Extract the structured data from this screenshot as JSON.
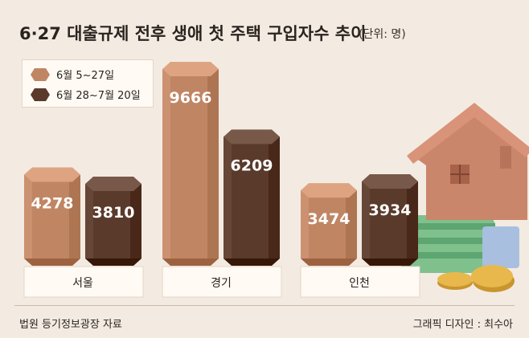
{
  "chart_data": {
    "type": "bar",
    "title": "6·27 대출규제 전후 생애 첫 주택 구입자수 추이",
    "unit": "(단위: 명)",
    "categories": [
      "서울",
      "경기",
      "인천"
    ],
    "series": [
      {
        "name": "6월 5~27일",
        "values": [
          4278,
          9666,
          3474
        ],
        "color": "#c08664"
      },
      {
        "name": "6월 28~7월 20일",
        "values": [
          3810,
          6209,
          3934
        ],
        "color": "#5a3a2b"
      }
    ],
    "legend_position": "top-left",
    "grid": false
  },
  "source": "법원 등기정보광장 자료",
  "credit": "그래픽 디자인 : 최수아"
}
